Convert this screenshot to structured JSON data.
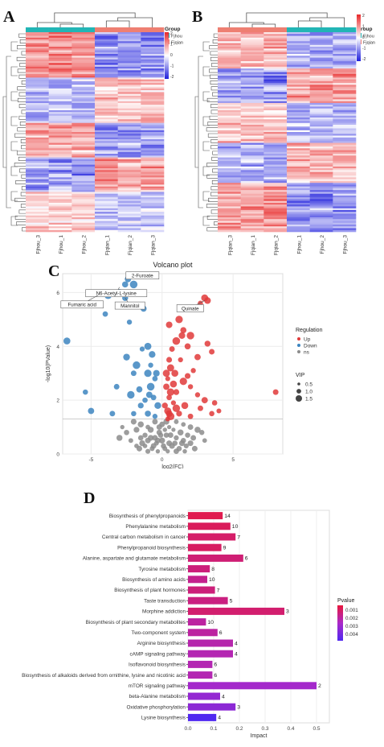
{
  "panels": {
    "A": "A",
    "B": "B",
    "C": "C",
    "D": "D"
  },
  "heatmap_a": {
    "legend_title": "Group",
    "groups": [
      {
        "name": "Fjhou",
        "color": "#22b5b5"
      },
      {
        "name": "Fjqian",
        "color": "#ee7f72"
      }
    ],
    "color_scale": {
      "ticks": [
        "2",
        "1",
        "0",
        "-1",
        "-2"
      ],
      "colors": [
        "#e8282a",
        "#ffffff",
        "#1e1edc"
      ]
    },
    "columns": [
      "Fjhou_3",
      "Fjhou_1",
      "Fjhou_2",
      "Fjqian_1",
      "Fjqian_2",
      "Fjqian_3"
    ],
    "column_groups": [
      "Fjhou",
      "Fjhou",
      "Fjhou",
      "Fjqian",
      "Fjqian",
      "Fjqian"
    ]
  },
  "heatmap_b": {
    "legend_title": "Group",
    "groups": [
      {
        "name": "Fjhou",
        "color": "#22b5b5"
      },
      {
        "name": "Fjqian",
        "color": "#ee7f72"
      }
    ],
    "color_scale": {
      "ticks": [
        "2",
        "1",
        "0",
        "-1",
        "-2"
      ],
      "colors": [
        "#e8282a",
        "#ffffff",
        "#1e1edc"
      ]
    },
    "columns": [
      "Fjqian_3",
      "Fjqian_1",
      "Fjqian_2",
      "Fjhou_1",
      "Fjhou_2",
      "Fjhou_3"
    ],
    "column_groups": [
      "Fjqian",
      "Fjqian",
      "Fjqian",
      "Fjhou",
      "Fjhou",
      "Fjhou"
    ]
  },
  "chart_data": [
    {
      "type": "scatter",
      "title": "Volcano plot",
      "xlabel": "log2(FC)",
      "ylabel": "-log10(PValue)",
      "xlim": [
        -7,
        8.5
      ],
      "ylim": [
        0,
        6.7
      ],
      "xticks": [
        -5,
        0,
        5
      ],
      "yticks": [
        0,
        2,
        4,
        6
      ],
      "threshold_y": 1.3,
      "legend": {
        "regulation_title": "Regulation",
        "regulation": [
          {
            "name": "Up",
            "color": "#e03a3a"
          },
          {
            "name": "Down",
            "color": "#3d85c0"
          },
          {
            "name": "ns",
            "color": "#8c8c8c"
          }
        ],
        "vip_title": "VIP",
        "vip": [
          "0.5",
          "1.0",
          "1.5"
        ]
      },
      "annotations": [
        {
          "label": "2-Furoate",
          "x": -2.4,
          "y": 6.5
        },
        {
          "label": "N6-Acetyl-L-lysine",
          "x": -3.0,
          "y": 6.2
        },
        {
          "label": "Fumaric acid",
          "x": -4.5,
          "y": 5.9
        },
        {
          "label": "Mannitol",
          "x": -2.6,
          "y": 5.8
        },
        {
          "label": "Quinate",
          "x": 3.0,
          "y": 5.7
        }
      ],
      "points_up": [
        [
          0.5,
          4.8
        ],
        [
          1.2,
          5.0
        ],
        [
          1.5,
          4.6
        ],
        [
          2.0,
          4.4
        ],
        [
          2.7,
          5.6
        ],
        [
          3.0,
          5.8
        ],
        [
          3.2,
          5.7
        ],
        [
          1.0,
          4.2
        ],
        [
          1.8,
          4.0
        ],
        [
          0.7,
          3.9
        ],
        [
          2.5,
          3.6
        ],
        [
          3.2,
          4.1
        ],
        [
          3.5,
          3.8
        ],
        [
          1.3,
          3.5
        ],
        [
          0.6,
          3.2
        ],
        [
          0.9,
          3.0
        ],
        [
          2.2,
          3.1
        ],
        [
          0.4,
          2.8
        ],
        [
          1.5,
          2.7
        ],
        [
          2.0,
          2.5
        ],
        [
          1.0,
          2.3
        ],
        [
          0.5,
          2.1
        ],
        [
          2.5,
          2.2
        ],
        [
          3.0,
          2.0
        ],
        [
          0.8,
          1.9
        ],
        [
          1.6,
          1.8
        ],
        [
          3.7,
          1.9
        ],
        [
          0.4,
          1.6
        ],
        [
          1.2,
          1.5
        ],
        [
          2.0,
          1.4
        ],
        [
          0.6,
          1.4
        ],
        [
          3.5,
          1.5
        ],
        [
          8.0,
          2.3
        ],
        [
          4.0,
          1.6
        ],
        [
          2.7,
          1.7
        ],
        [
          0.3,
          2.5
        ],
        [
          0.5,
          3.5
        ],
        [
          1.4,
          4.4
        ],
        [
          0.8,
          2.6
        ],
        [
          0.2,
          1.8
        ],
        [
          0.4,
          1.3
        ],
        [
          1.0,
          1.7
        ],
        [
          0.3,
          3.0
        ],
        [
          0.6,
          2.3
        ],
        [
          1.8,
          2.9
        ],
        [
          0.5,
          1.5
        ]
      ],
      "points_down": [
        [
          -2.6,
          6.3
        ],
        [
          -2.4,
          6.5
        ],
        [
          -3.0,
          6.0
        ],
        [
          -2.0,
          6.3
        ],
        [
          -3.8,
          5.9
        ],
        [
          -2.6,
          5.8
        ],
        [
          -4.0,
          5.2
        ],
        [
          -1.3,
          5.4
        ],
        [
          -2.3,
          4.9
        ],
        [
          -6.7,
          4.2
        ],
        [
          -1.0,
          4.0
        ],
        [
          -1.4,
          3.9
        ],
        [
          -0.7,
          3.7
        ],
        [
          -2.5,
          3.6
        ],
        [
          -0.8,
          3.3
        ],
        [
          -1.0,
          3.0
        ],
        [
          -2.0,
          3.0
        ],
        [
          -0.5,
          2.8
        ],
        [
          -3.2,
          2.5
        ],
        [
          -0.8,
          2.5
        ],
        [
          -1.6,
          2.4
        ],
        [
          -5.4,
          2.3
        ],
        [
          -2.2,
          2.2
        ],
        [
          -0.6,
          2.1
        ],
        [
          -1.2,
          2.0
        ],
        [
          -0.3,
          1.8
        ],
        [
          -1.5,
          1.8
        ],
        [
          -5.0,
          1.6
        ],
        [
          -3.5,
          1.5
        ],
        [
          -1.0,
          1.5
        ],
        [
          -2.0,
          1.5
        ],
        [
          -0.5,
          1.4
        ],
        [
          -1.8,
          3.3
        ],
        [
          -0.4,
          3.0
        ],
        [
          -0.9,
          2.2
        ]
      ],
      "points_ns": [
        [
          -2.0,
          1.2
        ],
        [
          -1.5,
          1.1
        ],
        [
          -1.0,
          1.0
        ],
        [
          -0.5,
          1.2
        ],
        [
          0.0,
          1.1
        ],
        [
          0.5,
          1.0
        ],
        [
          1.0,
          1.2
        ],
        [
          1.5,
          1.1
        ],
        [
          2.0,
          1.0
        ],
        [
          2.5,
          0.9
        ],
        [
          -2.5,
          0.8
        ],
        [
          -1.8,
          0.9
        ],
        [
          -1.2,
          0.7
        ],
        [
          -0.8,
          0.9
        ],
        [
          -0.2,
          0.8
        ],
        [
          0.3,
          0.7
        ],
        [
          0.8,
          0.9
        ],
        [
          1.3,
          0.8
        ],
        [
          1.8,
          0.7
        ],
        [
          2.2,
          0.6
        ],
        [
          -2.2,
          0.5
        ],
        [
          -1.5,
          0.6
        ],
        [
          -1.0,
          0.5
        ],
        [
          -0.5,
          0.6
        ],
        [
          0.0,
          0.5
        ],
        [
          0.5,
          0.4
        ],
        [
          1.0,
          0.6
        ],
        [
          1.5,
          0.5
        ],
        [
          2.0,
          0.4
        ],
        [
          -1.8,
          0.3
        ],
        [
          -1.2,
          0.3
        ],
        [
          -0.6,
          0.3
        ],
        [
          0.2,
          0.2
        ],
        [
          0.7,
          0.3
        ],
        [
          1.2,
          0.2
        ],
        [
          1.7,
          0.3
        ],
        [
          -1.0,
          0.1
        ],
        [
          -0.3,
          0.1
        ],
        [
          0.4,
          0.1
        ],
        [
          1.0,
          0.1
        ],
        [
          -0.8,
          0.6
        ],
        [
          0.6,
          0.7
        ],
        [
          -0.2,
          1.0
        ],
        [
          0.2,
          0.9
        ],
        [
          -1.4,
          0.4
        ],
        [
          1.4,
          0.4
        ],
        [
          -2.8,
          1.0
        ],
        [
          2.8,
          0.8
        ],
        [
          -0.4,
          0.4
        ],
        [
          0.1,
          0.3
        ],
        [
          -3.0,
          0.6
        ],
        [
          3.0,
          0.5
        ],
        [
          -0.1,
          0.7
        ],
        [
          0.9,
          0.4
        ],
        [
          -1.6,
          0.2
        ],
        [
          1.6,
          0.1
        ],
        [
          -0.7,
          0.2
        ],
        [
          0.3,
          1.2
        ],
        [
          -0.3,
          0.5
        ],
        [
          2.3,
          0.2
        ]
      ]
    },
    {
      "type": "bar",
      "orientation": "horizontal",
      "xlabel": "Impact",
      "xlim": [
        0,
        0.55
      ],
      "xticks": [
        "0.0",
        "0.1",
        "0.2",
        "0.3",
        "0.4",
        "0.5"
      ],
      "legend_title": "Pvalue",
      "legend_ticks": [
        "0.001",
        "0.002",
        "0.003",
        "0.004"
      ],
      "categories": [
        "Biosynthesis of phenylpropanoids",
        "Phenylalanine metabolism",
        "Central carbon metabolism in cancer",
        "Phenylpropanoid biosynthesis",
        "Alanine, aspartate and glutamate metabolism",
        "Tyrosine metabolism",
        "Biosynthesis of amino acids",
        "Biosynthesis of plant hormones",
        "Taste transduction",
        "Morphine addiction",
        "Biosynthesis of plant secondary metabolites",
        "Two-component system",
        "Arginine biosynthesis",
        "cAMP signaling pathway",
        "Isoflavonoid biosynthesis",
        "Biosynthesis of alkaloids derived from ornithine, lysine and nicotinic acid",
        "mTOR signaling pathway",
        "beta-Alanine metabolism",
        "Oxidative phosphorylation",
        "Lysine biosynthesis"
      ],
      "values": [
        0.135,
        0.165,
        0.185,
        0.13,
        0.215,
        0.085,
        0.075,
        0.105,
        0.155,
        0.375,
        0.07,
        0.115,
        0.175,
        0.175,
        0.095,
        0.095,
        0.5,
        0.125,
        0.185,
        0.11
      ],
      "counts": [
        "14",
        "10",
        "7",
        "9",
        "6",
        "8",
        "10",
        "7",
        "5",
        "3",
        "10",
        "6",
        "4",
        "4",
        "6",
        "6",
        "2",
        "4",
        "3",
        "4"
      ],
      "pvalues": [
        0.0003,
        0.0005,
        0.0007,
        0.0006,
        0.0009,
        0.001,
        0.0013,
        0.001,
        0.0011,
        0.0008,
        0.0016,
        0.0016,
        0.0018,
        0.0019,
        0.0019,
        0.0019,
        0.0024,
        0.0028,
        0.003,
        0.0045
      ]
    }
  ]
}
